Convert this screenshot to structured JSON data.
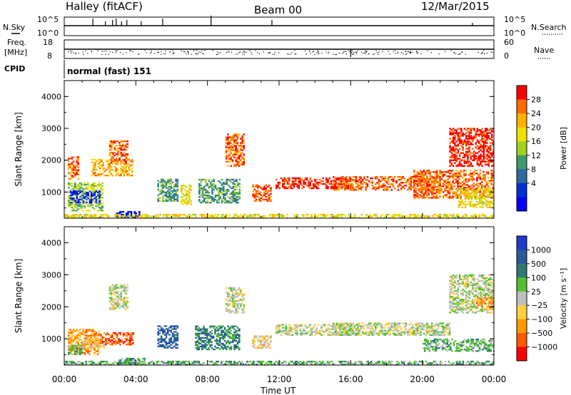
{
  "header": {
    "title": "Halley (fitACF)",
    "beam": "Beam 00",
    "date": "12/Mar/2015"
  },
  "top_panels": {
    "nsky_label": "N.Sky",
    "nsky_ticks": [
      "10^5",
      "10^0"
    ],
    "nsearch_label": "N.Search",
    "nsearch_ticks": [
      "10^5",
      "10^0"
    ],
    "freq_label_1": "Freq.",
    "freq_label_2": "[MHz]",
    "freq_ticks": [
      "18",
      "8"
    ],
    "nave_label": "Nave",
    "nave_ticks": [
      "60",
      "0"
    ],
    "cpid_label": "CPID",
    "cpid_text": "normal (fast) 151"
  },
  "chart_data": [
    {
      "type": "heatmap",
      "name": "power",
      "ylabel": "Slant Range [km]",
      "ylim": [
        180,
        4500
      ],
      "yticks": [
        "1000",
        "2000",
        "3000",
        "4000"
      ],
      "colorbar_label": "Power [dB]",
      "colorbar_ticks": [
        "28",
        "24",
        "20",
        "16",
        "12",
        "8",
        "4"
      ],
      "colorbar_colors": [
        "#ff0000",
        "#ff6a00",
        "#ffb000",
        "#f0e000",
        "#a0d020",
        "#3a9a6a",
        "#2c6aa0",
        "#0030d0",
        "#0000ff"
      ],
      "regions": [
        {
          "t": [
            0.2,
            2.1
          ],
          "r": [
            400,
            1300
          ],
          "level": 4
        },
        {
          "t": [
            0.3,
            2.0
          ],
          "r": [
            650,
            1050
          ],
          "level": 7
        },
        {
          "t": [
            0.2,
            0.8
          ],
          "r": [
            1400,
            2100
          ],
          "level": 1
        },
        {
          "t": [
            1.5,
            3.8
          ],
          "r": [
            1500,
            2000
          ],
          "level": 2
        },
        {
          "t": [
            2.8,
            4.2
          ],
          "r": [
            180,
            400
          ],
          "level": 8
        },
        {
          "t": [
            2.5,
            3.5
          ],
          "r": [
            1900,
            2600
          ],
          "level": 1
        },
        {
          "t": [
            5.2,
            6.3
          ],
          "r": [
            700,
            1400
          ],
          "level": 5
        },
        {
          "t": [
            6.5,
            7.1
          ],
          "r": [
            600,
            1200
          ],
          "level": 3
        },
        {
          "t": [
            7.5,
            9.8
          ],
          "r": [
            650,
            1400
          ],
          "level": 5
        },
        {
          "t": [
            9.0,
            10.0
          ],
          "r": [
            1800,
            2800
          ],
          "level": 1
        },
        {
          "t": [
            10.5,
            11.5
          ],
          "r": [
            700,
            1200
          ],
          "level": 1
        },
        {
          "t": [
            11.8,
            16.0
          ],
          "r": [
            1100,
            1450
          ],
          "level": 0
        },
        {
          "t": [
            15.0,
            21.0
          ],
          "r": [
            1050,
            1500
          ],
          "level": 1
        },
        {
          "t": [
            19.5,
            24.0
          ],
          "r": [
            800,
            1700
          ],
          "level": 1
        },
        {
          "t": [
            21.5,
            24.0
          ],
          "r": [
            1800,
            3000
          ],
          "level": 0
        },
        {
          "t": [
            22.0,
            24.0
          ],
          "r": [
            500,
            1100
          ],
          "level": 3
        },
        {
          "t": [
            0,
            24.0
          ],
          "r": [
            180,
            300
          ],
          "level": 3
        }
      ]
    },
    {
      "type": "heatmap",
      "name": "velocity",
      "ylabel": "Slant Range [km]",
      "ylim": [
        180,
        4500
      ],
      "yticks": [
        "1000",
        "2000",
        "3000",
        "4000"
      ],
      "colorbar_label": "Velocity [m s⁻¹]",
      "colorbar_ticks": [
        "1000",
        "500",
        "100",
        "25",
        "−25",
        "−100",
        "−500",
        "−1000"
      ],
      "colorbar_colors": [
        "#1e3cc8",
        "#2a5a9a",
        "#2e7a70",
        "#50c030",
        "#bfbfbf",
        "#ffd040",
        "#ff9a00",
        "#ff5a00",
        "#ff0000"
      ],
      "regions": [
        {
          "t": [
            0.2,
            2.0
          ],
          "r": [
            500,
            1300
          ],
          "level": 6
        },
        {
          "t": [
            0.2,
            1.0
          ],
          "r": [
            500,
            800
          ],
          "level": 3
        },
        {
          "t": [
            1.0,
            2.2
          ],
          "r": [
            700,
            1000
          ],
          "level": 5
        },
        {
          "t": [
            2.0,
            3.8
          ],
          "r": [
            800,
            1200
          ],
          "level": 7
        },
        {
          "t": [
            2.5,
            3.5
          ],
          "r": [
            1900,
            2700
          ],
          "level": 4
        },
        {
          "t": [
            3.0,
            4.5
          ],
          "r": [
            180,
            400
          ],
          "level": 3
        },
        {
          "t": [
            5.2,
            6.3
          ],
          "r": [
            700,
            1400
          ],
          "level": 1
        },
        {
          "t": [
            7.3,
            9.8
          ],
          "r": [
            650,
            1400
          ],
          "level": 2
        },
        {
          "t": [
            9.0,
            10.0
          ],
          "r": [
            1800,
            2600
          ],
          "level": 4
        },
        {
          "t": [
            10.5,
            11.5
          ],
          "r": [
            700,
            1100
          ],
          "level": 5
        },
        {
          "t": [
            11.8,
            16.0
          ],
          "r": [
            1100,
            1450
          ],
          "level": 4
        },
        {
          "t": [
            15.0,
            21.5
          ],
          "r": [
            1100,
            1500
          ],
          "level": 4
        },
        {
          "t": [
            20.0,
            24.0
          ],
          "r": [
            600,
            1000
          ],
          "level": 3
        },
        {
          "t": [
            21.5,
            24.0
          ],
          "r": [
            1800,
            3000
          ],
          "level": 4
        },
        {
          "t": [
            23.0,
            24.0
          ],
          "r": [
            1900,
            2300
          ],
          "level": 6
        },
        {
          "t": [
            0,
            24.0
          ],
          "r": [
            180,
            300
          ],
          "level": 3
        }
      ]
    }
  ],
  "time_axis": {
    "label": "Time UT",
    "ticks": [
      "00:00",
      "04:00",
      "08:00",
      "12:00",
      "16:00",
      "20:00",
      "00:00"
    ]
  }
}
